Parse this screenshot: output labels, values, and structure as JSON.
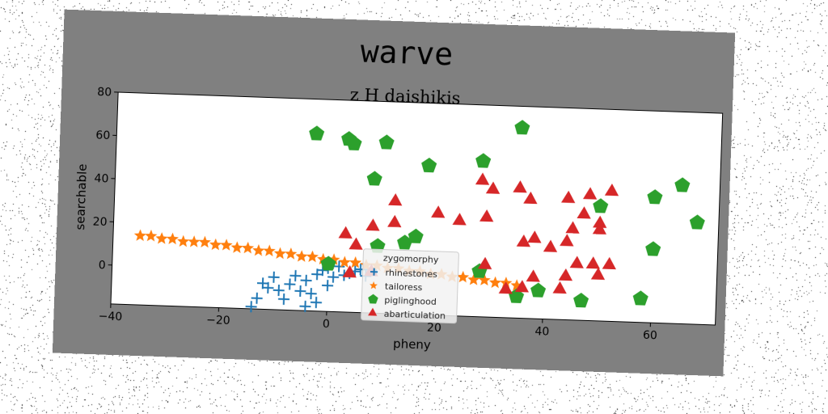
{
  "chart_data": {
    "type": "scatter",
    "title": "warve",
    "subtitle": "z H daishikis",
    "xlabel": "pheny",
    "ylabel": "searchable",
    "xlim": [
      -40,
      72
    ],
    "ylim": [
      -18,
      80
    ],
    "xticks": [
      -40,
      -20,
      0,
      20,
      40,
      60
    ],
    "yticks": [
      0,
      20,
      40,
      60,
      80
    ],
    "grid": false,
    "legend": {
      "title": "zygomorphy",
      "position": "lower-center"
    },
    "series": [
      {
        "name": "rhinestones",
        "marker": "plus",
        "color": "#1f77b4",
        "points": [
          [
            -14,
            -17
          ],
          [
            -13,
            -13
          ],
          [
            -12,
            -6
          ],
          [
            -11,
            -8
          ],
          [
            -10,
            -3
          ],
          [
            -9,
            -9
          ],
          [
            -8,
            -13
          ],
          [
            -7,
            -6
          ],
          [
            -6,
            -2
          ],
          [
            -5,
            -9
          ],
          [
            -4,
            -16
          ],
          [
            -4,
            -4
          ],
          [
            -3,
            -10
          ],
          [
            -2,
            -14
          ],
          [
            -2,
            -1
          ],
          [
            -1,
            1
          ],
          [
            0,
            -6
          ],
          [
            0,
            2
          ],
          [
            1,
            -2
          ],
          [
            2,
            3
          ],
          [
            3,
            -1
          ],
          [
            4,
            0
          ],
          [
            5,
            1
          ],
          [
            6,
            2
          ],
          [
            7,
            -1
          ],
          [
            8,
            2
          ]
        ]
      },
      {
        "name": "tailoress",
        "marker": "star",
        "color": "#ff7f0e",
        "points": [
          [
            -35,
            14
          ],
          [
            -33,
            14
          ],
          [
            -31,
            13
          ],
          [
            -29,
            13
          ],
          [
            -27,
            12
          ],
          [
            -25,
            12
          ],
          [
            -23,
            12
          ],
          [
            -21,
            11
          ],
          [
            -19,
            11
          ],
          [
            -17,
            10
          ],
          [
            -15,
            10
          ],
          [
            -13,
            9
          ],
          [
            -11,
            9
          ],
          [
            -9,
            8
          ],
          [
            -7,
            8
          ],
          [
            -5,
            7
          ],
          [
            -3,
            7
          ],
          [
            -1,
            6
          ],
          [
            1,
            6
          ],
          [
            3,
            5
          ],
          [
            5,
            5
          ],
          [
            7,
            4
          ],
          [
            9,
            4
          ],
          [
            11,
            3
          ],
          [
            13,
            3
          ],
          [
            15,
            2
          ],
          [
            17,
            2
          ],
          [
            19,
            1
          ],
          [
            21,
            1
          ],
          [
            23,
            0
          ],
          [
            25,
            0
          ],
          [
            27,
            -1
          ],
          [
            29,
            -1
          ],
          [
            31,
            -2
          ],
          [
            33,
            -2
          ],
          [
            35,
            -3
          ]
        ]
      },
      {
        "name": "piglinghood",
        "marker": "pentagon",
        "color": "#2ca02c",
        "points": [
          [
            -3,
            64
          ],
          [
            3,
            62
          ],
          [
            4,
            60
          ],
          [
            10,
            61
          ],
          [
            8,
            44
          ],
          [
            18,
            51
          ],
          [
            28,
            54
          ],
          [
            35,
            70
          ],
          [
            65,
            46
          ],
          [
            68,
            29
          ],
          [
            60,
            40
          ],
          [
            50,
            35
          ],
          [
            60,
            16
          ],
          [
            16,
            18
          ],
          [
            14,
            15
          ],
          [
            9,
            13
          ],
          [
            0,
            4
          ],
          [
            28,
            3
          ],
          [
            35,
            -8
          ],
          [
            39,
            -5
          ],
          [
            47,
            -9
          ],
          [
            58,
            -7
          ]
        ]
      },
      {
        "name": "abarticulation",
        "marker": "triangle",
        "color": "#d62728",
        "points": [
          [
            28,
            45
          ],
          [
            30,
            41
          ],
          [
            35,
            42
          ],
          [
            37,
            37
          ],
          [
            44,
            38
          ],
          [
            48,
            40
          ],
          [
            52,
            42
          ],
          [
            47,
            31
          ],
          [
            50,
            27
          ],
          [
            50,
            24
          ],
          [
            45,
            24
          ],
          [
            44,
            18
          ],
          [
            41,
            15
          ],
          [
            36,
            17
          ],
          [
            38,
            19
          ],
          [
            29,
            28
          ],
          [
            24,
            26
          ],
          [
            20,
            29
          ],
          [
            12,
            34
          ],
          [
            12,
            24
          ],
          [
            8,
            22
          ],
          [
            3,
            18
          ],
          [
            5,
            13
          ],
          [
            4,
            0
          ],
          [
            8,
            1
          ],
          [
            29,
            6
          ],
          [
            38,
            1
          ],
          [
            44,
            2
          ],
          [
            46,
            8
          ],
          [
            49,
            8
          ],
          [
            52,
            8
          ],
          [
            50,
            3
          ],
          [
            36,
            -4
          ],
          [
            43,
            -4
          ],
          [
            33,
            -5
          ]
        ]
      }
    ]
  }
}
